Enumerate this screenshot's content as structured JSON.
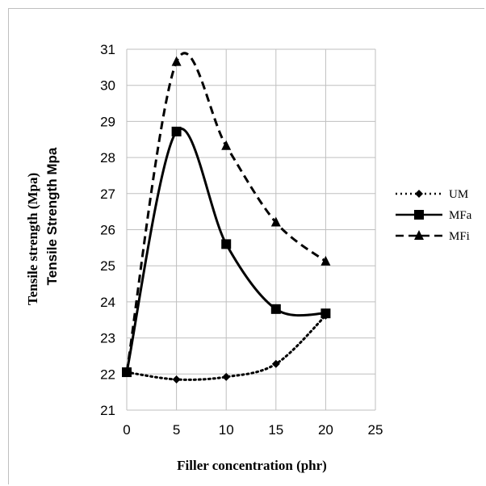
{
  "chart_data": {
    "type": "line",
    "x": [
      0,
      5,
      10,
      15,
      20
    ],
    "series": [
      {
        "name": "UM",
        "values": [
          22.05,
          21.85,
          21.92,
          22.28,
          23.62
        ],
        "style": "dotted",
        "marker": "diamond"
      },
      {
        "name": "MFa",
        "values": [
          22.05,
          28.72,
          25.6,
          23.8,
          23.68
        ],
        "style": "solid",
        "marker": "square"
      },
      {
        "name": "MFi",
        "values": [
          22.05,
          30.65,
          28.32,
          26.2,
          25.12
        ],
        "style": "dashed",
        "marker": "triangle"
      }
    ],
    "title": "",
    "xlabel": "Filler concentration (phr)",
    "ylabel": "Tensile strength (Mpa)",
    "ylabel_secondary": "Tensile Strength Mpa",
    "xlim": [
      0,
      25
    ],
    "ylim": [
      21,
      31
    ],
    "xticks": [
      0,
      5,
      10,
      15,
      20,
      25
    ],
    "yticks": [
      21,
      22,
      23,
      24,
      25,
      26,
      27,
      28,
      29,
      30,
      31
    ],
    "grid": "both",
    "legend": "right",
    "colors": {
      "lines": "#000000",
      "grid": "#bfbfbf"
    }
  }
}
